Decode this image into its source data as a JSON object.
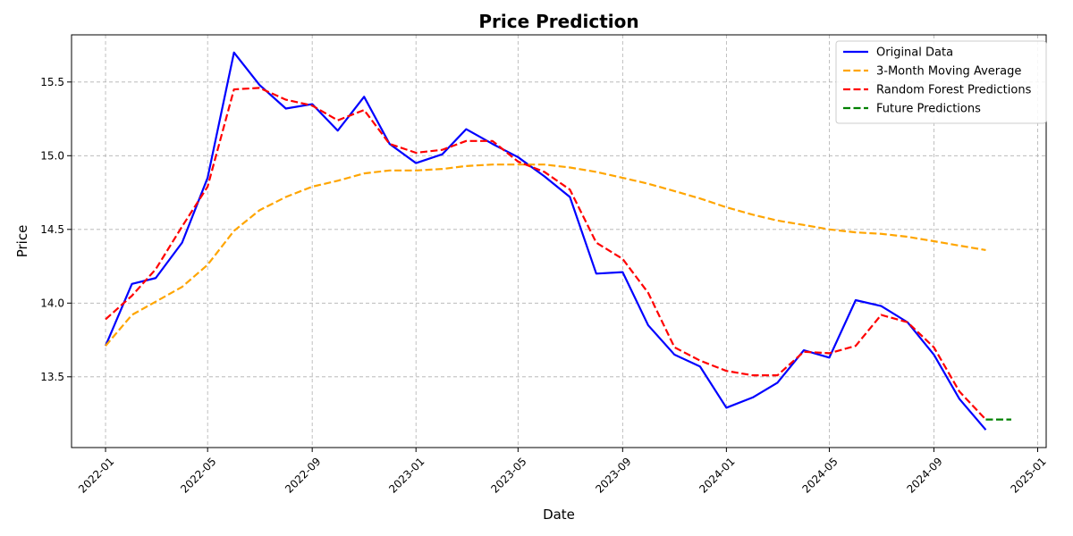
{
  "chart_data": {
    "type": "line",
    "title": "Price Prediction",
    "xlabel": "Date",
    "ylabel": "Price",
    "xlim": [
      "2021-11-22",
      "2025-01-11"
    ],
    "ylim": [
      13.02,
      15.82
    ],
    "x_ticks": [
      "2022-01",
      "2022-05",
      "2022-09",
      "2023-01",
      "2023-05",
      "2023-09",
      "2024-01",
      "2024-05",
      "2024-09",
      "2025-01"
    ],
    "y_ticks": [
      13.5,
      14.0,
      14.5,
      15.0,
      15.5
    ],
    "grid": true,
    "legend_position": "top-right",
    "series": [
      {
        "name": "Original Data",
        "color": "#0000ff",
        "style": "solid",
        "x": [
          "2022-01-01",
          "2022-02-01",
          "2022-03-01",
          "2022-04-01",
          "2022-05-01",
          "2022-06-01",
          "2022-07-01",
          "2022-08-01",
          "2022-09-01",
          "2022-10-01",
          "2022-11-01",
          "2022-12-01",
          "2023-01-01",
          "2023-02-01",
          "2023-03-01",
          "2023-04-01",
          "2023-05-01",
          "2023-06-01",
          "2023-07-01",
          "2023-08-01",
          "2023-09-01",
          "2023-10-01",
          "2023-11-01",
          "2023-12-01",
          "2024-01-01",
          "2024-02-01",
          "2024-03-01",
          "2024-04-01",
          "2024-05-01",
          "2024-06-01",
          "2024-07-01",
          "2024-08-01",
          "2024-09-01",
          "2024-10-01",
          "2024-11-01"
        ],
        "values": [
          13.71,
          14.13,
          14.17,
          14.41,
          14.85,
          15.7,
          15.48,
          15.32,
          15.35,
          15.17,
          15.4,
          15.08,
          14.95,
          15.01,
          15.18,
          15.08,
          14.99,
          14.86,
          14.72,
          14.2,
          14.21,
          13.85,
          13.65,
          13.57,
          13.29,
          13.36,
          13.46,
          13.68,
          13.63,
          14.02,
          13.98,
          13.87,
          13.65,
          13.35,
          13.14
        ]
      },
      {
        "name": "3-Month Moving Average",
        "color": "#ffa500",
        "style": "dashed",
        "x": [
          "2022-01-01",
          "2022-02-01",
          "2022-03-01",
          "2022-04-01",
          "2022-05-01",
          "2022-06-01",
          "2022-07-01",
          "2022-08-01",
          "2022-09-01",
          "2022-10-01",
          "2022-11-01",
          "2022-12-01",
          "2023-01-01",
          "2023-02-01",
          "2023-03-01",
          "2023-04-01",
          "2023-05-01",
          "2023-06-01",
          "2023-07-01",
          "2023-08-01",
          "2023-09-01",
          "2023-10-01",
          "2023-11-01",
          "2023-12-01",
          "2024-01-01",
          "2024-02-01",
          "2024-03-01",
          "2024-04-01",
          "2024-05-01",
          "2024-06-01",
          "2024-07-01",
          "2024-08-01",
          "2024-09-01",
          "2024-10-01",
          "2024-11-01"
        ],
        "values": [
          13.71,
          13.92,
          14.01,
          14.11,
          14.26,
          14.49,
          14.63,
          14.72,
          14.79,
          14.83,
          14.88,
          14.9,
          14.9,
          14.91,
          14.93,
          14.94,
          14.94,
          14.94,
          14.92,
          14.89,
          14.85,
          14.81,
          14.76,
          14.71,
          14.65,
          14.6,
          14.56,
          14.53,
          14.5,
          14.48,
          14.47,
          14.45,
          14.42,
          14.39,
          14.36
        ]
      },
      {
        "name": "Random Forest Predictions",
        "color": "#ff0000",
        "style": "dashed",
        "x": [
          "2022-01-01",
          "2022-02-01",
          "2022-03-01",
          "2022-04-01",
          "2022-05-01",
          "2022-06-01",
          "2022-07-01",
          "2022-08-01",
          "2022-09-01",
          "2022-10-01",
          "2022-11-01",
          "2022-12-01",
          "2023-01-01",
          "2023-02-01",
          "2023-03-01",
          "2023-04-01",
          "2023-05-01",
          "2023-06-01",
          "2023-07-01",
          "2023-08-01",
          "2023-09-01",
          "2023-10-01",
          "2023-11-01",
          "2023-12-01",
          "2024-01-01",
          "2024-02-01",
          "2024-03-01",
          "2024-04-01",
          "2024-05-01",
          "2024-06-01",
          "2024-07-01",
          "2024-08-01",
          "2024-09-01",
          "2024-10-01",
          "2024-11-01"
        ],
        "values": [
          13.89,
          14.05,
          14.23,
          14.52,
          14.79,
          15.45,
          15.46,
          15.38,
          15.34,
          15.24,
          15.31,
          15.08,
          15.02,
          15.04,
          15.1,
          15.1,
          14.96,
          14.89,
          14.77,
          14.41,
          14.3,
          14.07,
          13.7,
          13.61,
          13.54,
          13.51,
          13.51,
          13.67,
          13.66,
          13.71,
          13.92,
          13.87,
          13.7,
          13.4,
          13.21
        ]
      },
      {
        "name": "Future Predictions",
        "color": "#008000",
        "style": "dashed",
        "x": [
          "2024-11-01",
          "2024-12-01"
        ],
        "values": [
          13.21,
          13.21
        ]
      }
    ]
  }
}
